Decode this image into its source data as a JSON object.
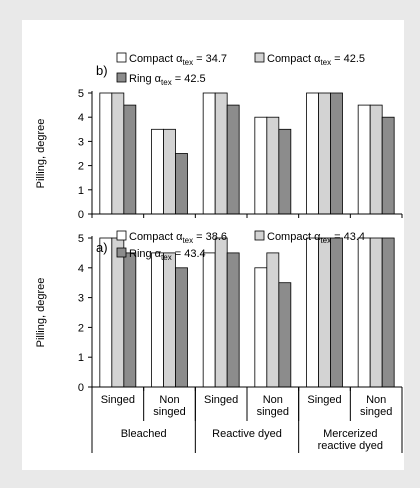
{
  "chart_data": [
    {
      "panel_label": "b)",
      "type": "bar",
      "ylabel": "Pilling, degree",
      "ylim": [
        0,
        5
      ],
      "yticks": [
        "0",
        "1",
        "2",
        "3",
        "4",
        "5"
      ],
      "grid": false,
      "categories": [
        "Bleached Singed",
        "Bleached Non singed",
        "Reactive dyed Singed",
        "Reactive dyed Non singed",
        "Mercerized reactive dyed Singed",
        "Mercerized reactive dyed Non singed"
      ],
      "series": [
        {
          "name": "Compact α",
          "name_sub": "tex",
          "name_rest": " = 34.7",
          "color": "#ffffff",
          "values": [
            5,
            3.5,
            5,
            4,
            5,
            4.5
          ]
        },
        {
          "name": "Compact α",
          "name_sub": "tex",
          "name_rest": " = 42.5",
          "color": "#d3d3d3",
          "values": [
            5,
            3.5,
            5,
            4,
            5,
            4.5
          ]
        },
        {
          "name": "Ring α",
          "name_sub": "tex",
          "name_rest": " = 42.5",
          "color": "#8c8c8c",
          "values": [
            4.5,
            2.5,
            4.5,
            3.5,
            5,
            4
          ]
        }
      ]
    },
    {
      "panel_label": "a)",
      "type": "bar",
      "ylabel": "Pilling, degree",
      "ylim": [
        0,
        5
      ],
      "yticks": [
        "0",
        "1",
        "2",
        "3",
        "4",
        "5"
      ],
      "grid": false,
      "categories": [
        "Bleached Singed",
        "Bleached Non singed",
        "Reactive dyed Singed",
        "Reactive dyed Non singed",
        "Mercerized reactive dyed Singed",
        "Mercerized reactive dyed Non singed"
      ],
      "series": [
        {
          "name": "Compact α",
          "name_sub": "tex",
          "name_rest": " = 38.6",
          "color": "#ffffff",
          "values": [
            5,
            4.5,
            4.5,
            4,
            5,
            5
          ]
        },
        {
          "name": "Compact α",
          "name_sub": "tex",
          "name_rest": " = 43.4",
          "color": "#d3d3d3",
          "values": [
            5,
            4.5,
            5,
            4.5,
            5,
            5
          ]
        },
        {
          "name": "Ring α",
          "name_sub": "tex",
          "name_rest": " = 43.4",
          "color": "#8c8c8c",
          "values": [
            4.5,
            4,
            4.5,
            3.5,
            5,
            5
          ]
        }
      ]
    }
  ],
  "x_axis": {
    "subgroups": [
      [
        "Singed"
      ],
      [
        "Non",
        "singed"
      ],
      [
        "Singed"
      ],
      [
        "Non",
        "singed"
      ],
      [
        "Singed"
      ],
      [
        "Non",
        "singed"
      ]
    ],
    "groups": [
      [
        "Bleached"
      ],
      [
        "Reactive dyed"
      ],
      [
        "Mercerized",
        "reactive dyed"
      ]
    ]
  },
  "colors": {
    "background": "#e9e9e9",
    "panel": "#ffffff",
    "axis": "#000000"
  }
}
